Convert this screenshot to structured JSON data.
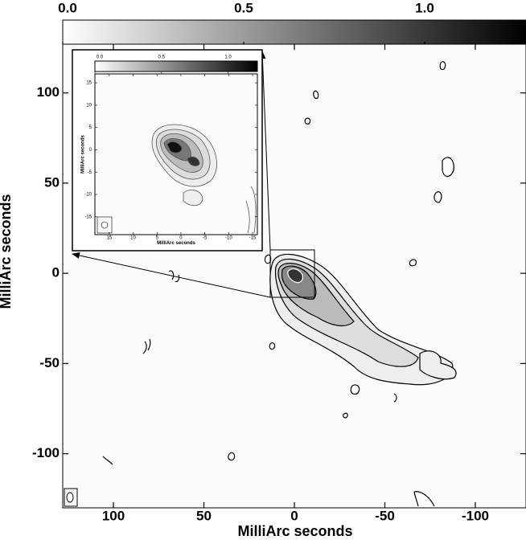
{
  "chart_data": [
    {
      "type": "contour",
      "xlabel": "MilliArc seconds",
      "ylabel": "MilliArc seconds",
      "xlim": [
        128,
        -128
      ],
      "ylim": [
        -130,
        127
      ],
      "xticks": [
        100,
        50,
        0,
        -50,
        -100
      ],
      "yticks": [
        100,
        50,
        0,
        -50,
        -100
      ],
      "colorbar_lim": [
        0,
        1.28
      ],
      "colorbar_ticks": [
        {
          "value": 0,
          "label": "0.0"
        },
        0.5,
        {
          "value": 1,
          "label": "1.0"
        }
      ]
    },
    {
      "type": "contour",
      "xlabel": "MilliArc seconds",
      "ylabel": "MilliArc seconds",
      "xlim": [
        18,
        -16
      ],
      "ylim": [
        -19,
        17
      ],
      "xticks": [
        15,
        10,
        5,
        0,
        -5,
        -10,
        -15
      ],
      "yticks": [
        15,
        10,
        5,
        0,
        -5,
        -10,
        -15
      ],
      "colorbar_lim": [
        0,
        1.22
      ],
      "colorbar_ticks": [
        {
          "value": 0,
          "label": "0.0"
        },
        0.5,
        {
          "value": 1,
          "label": "1.0"
        }
      ]
    }
  ]
}
